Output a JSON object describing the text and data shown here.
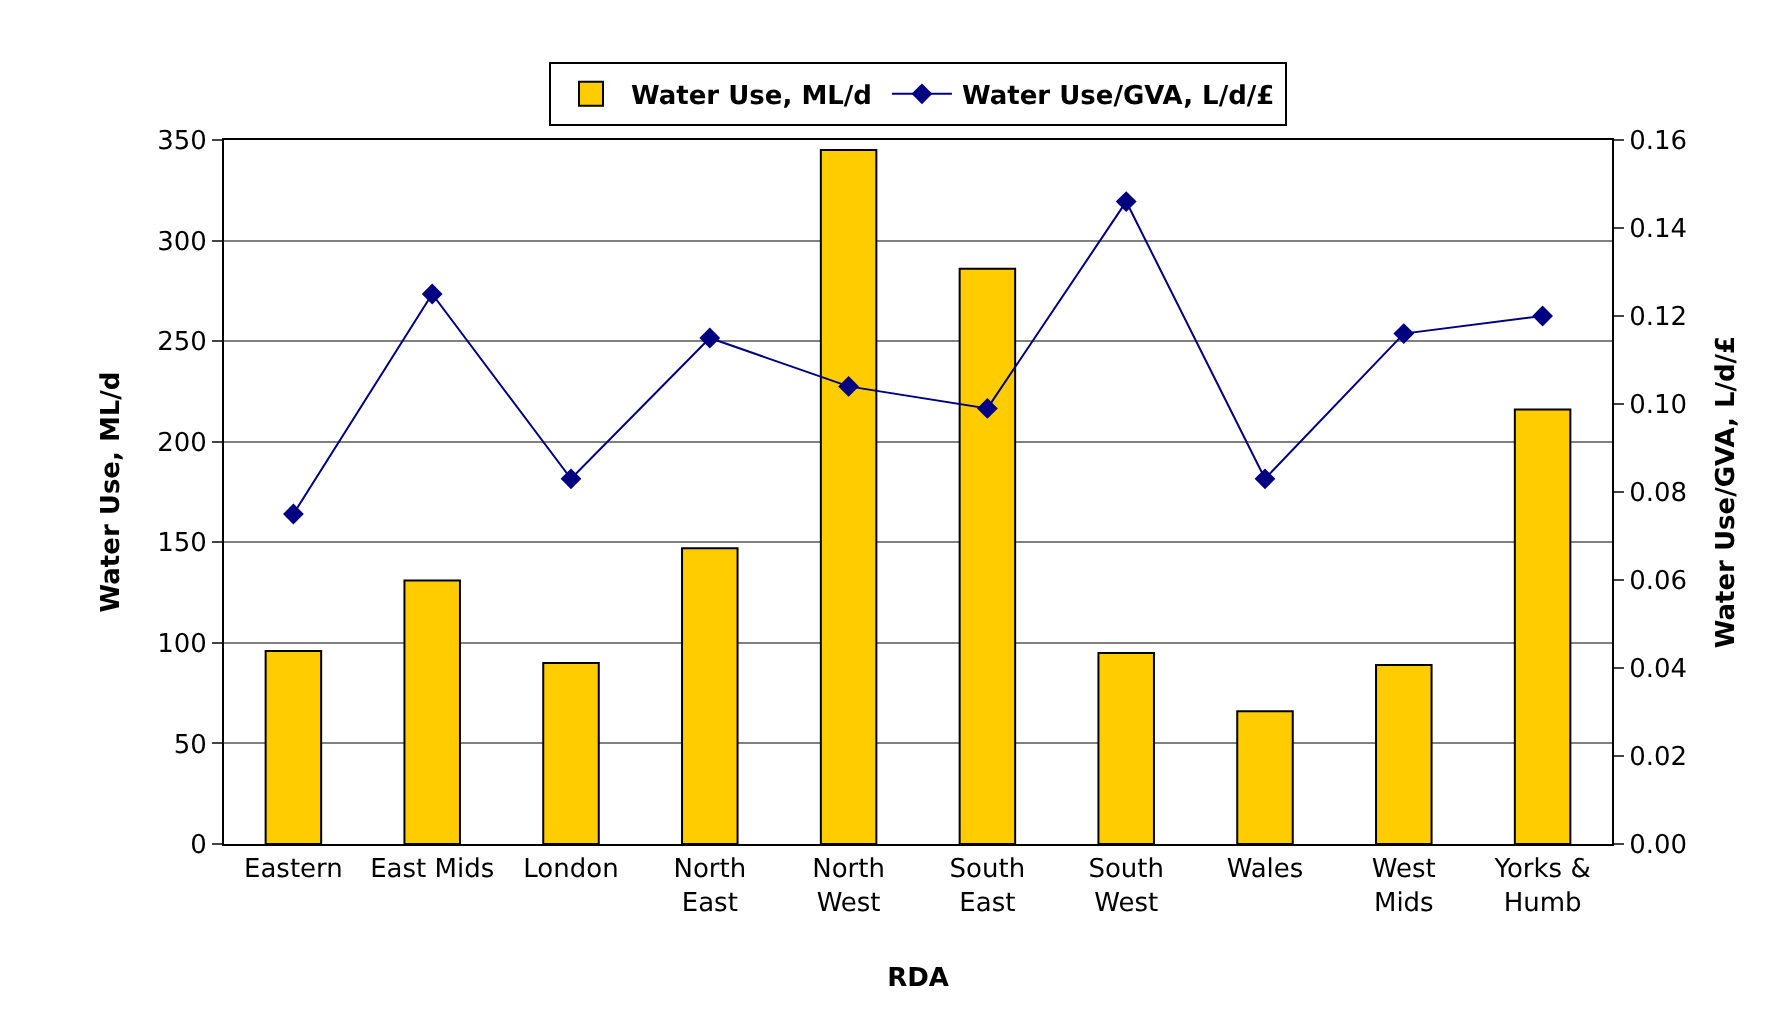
{
  "chart_data": {
    "type": "bar",
    "xlabel": "RDA",
    "ylabel": "Water Use, ML/d",
    "y2label": "Water Use/GVA, L/d/£",
    "categories": [
      "Eastern",
      "East Mids",
      "London",
      "North\nEast",
      "North\nWest",
      "South\nEast",
      "South\nWest",
      "Wales",
      "West\nMids",
      "Yorks &\nHumb"
    ],
    "series": [
      {
        "name": "Water Use, ML/d",
        "color": "#ffcc00",
        "values": [
          96,
          131,
          90,
          147,
          345,
          286,
          95,
          66,
          89,
          216
        ]
      },
      {
        "name": "Water Use/GVA, L/d/£",
        "type": "line",
        "axis": "y2",
        "color": "#000080",
        "marker": "diamond",
        "values": [
          0.075,
          0.125,
          0.083,
          0.115,
          0.104,
          0.099,
          0.146,
          0.083,
          0.116,
          0.12
        ]
      }
    ],
    "ylim": [
      0,
      350
    ],
    "yticks": [
      0,
      50,
      100,
      150,
      200,
      250,
      300,
      350
    ],
    "y2lim": [
      0,
      0.16
    ],
    "y2ticks": [
      {
        "value": 0,
        "label": "0.00"
      },
      {
        "value": 0.02,
        "label": "0.02"
      },
      {
        "value": 0.04,
        "label": "0.04"
      },
      {
        "value": 0.06,
        "label": "0.06"
      },
      {
        "value": 0.08,
        "label": "0.08"
      },
      {
        "value": 0.1,
        "label": "0.10"
      },
      {
        "value": 0.12,
        "label": "0.12"
      },
      {
        "value": 0.14,
        "label": "0.14"
      },
      {
        "value": 0.16,
        "label": "0.16"
      }
    ],
    "grid": "y",
    "legend": "top"
  }
}
